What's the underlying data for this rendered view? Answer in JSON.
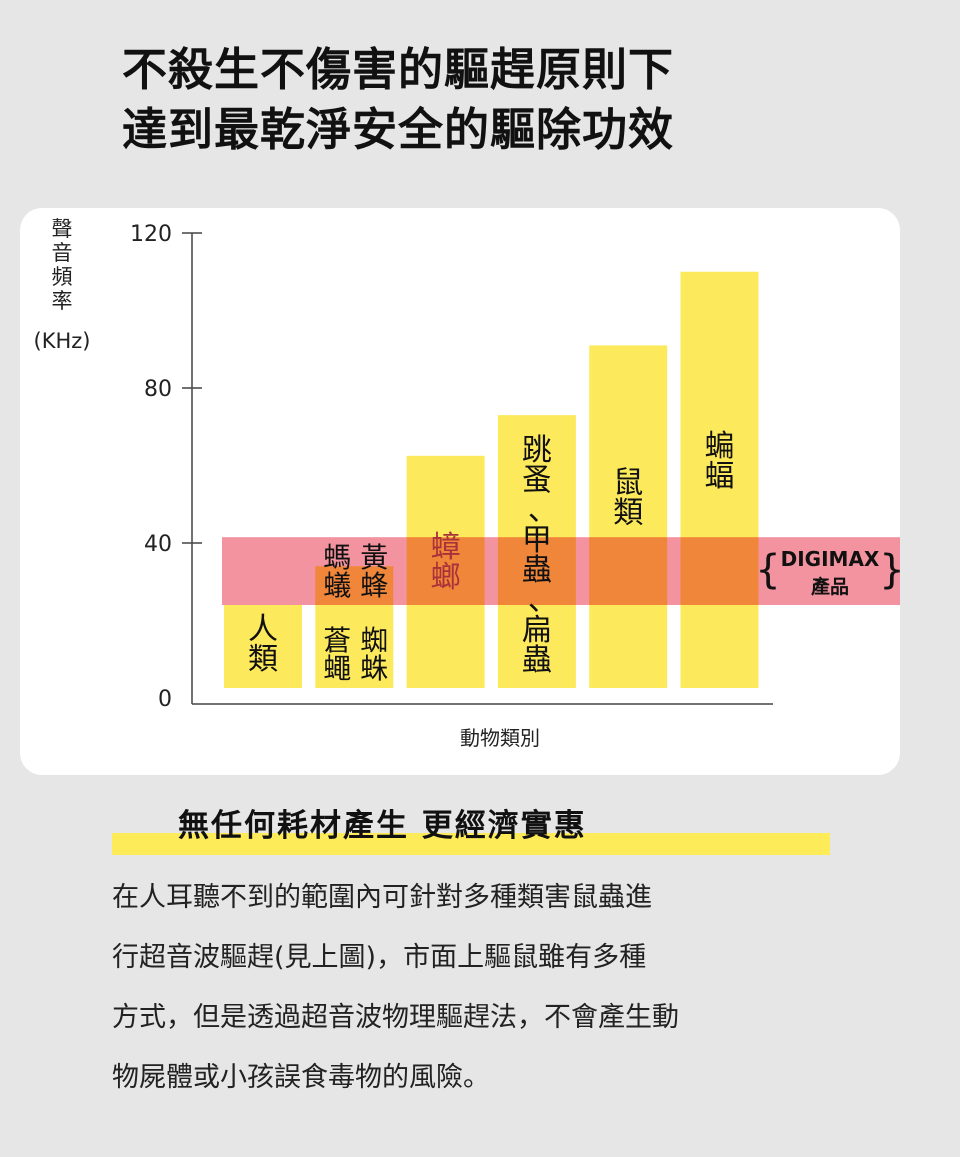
{
  "title_lines": [
    "不殺生不傷害的驅趕原則下",
    "達到最乾淨安全的驅除功效"
  ],
  "chart_data": {
    "type": "bar",
    "ylabel": "聲音頻率(KHz)",
    "ylabel_chars": [
      "聲",
      "音",
      "頻",
      "率"
    ],
    "ylabel_unit": "(KHz)",
    "xlabel": "動物類別",
    "ylim": [
      0,
      120
    ],
    "yticks": [
      0,
      40,
      80,
      120
    ],
    "grid": false,
    "bar_color": "#fde95c",
    "band_color": "#f2939f",
    "categories": [
      {
        "columns": [
          [
            "人類"
          ]
        ],
        "value": 24
      },
      {
        "columns": [
          [
            "螞蟻",
            "蒼蠅"
          ],
          [
            "黃蜂",
            "蜘蛛"
          ]
        ],
        "value": 34
      },
      {
        "columns": [
          [
            "蟑螂"
          ]
        ],
        "value": 62.5
      },
      {
        "columns": [
          [
            "跳蚤、甲蟲、扁蟲"
          ]
        ],
        "value": 73
      },
      {
        "columns": [
          [
            "鼠類"
          ]
        ],
        "value": 91
      },
      {
        "columns": [
          [
            "蝙蝠"
          ]
        ],
        "value": 110
      }
    ],
    "band": {
      "range": [
        24,
        41.5
      ],
      "label_line1": "DIGIMAX",
      "label_line2": "產品"
    }
  },
  "subtitle": "無任何耗材產生 更經濟實惠",
  "body_lines": [
    "在人耳聽不到的範圍內可針對多種類害鼠蟲進",
    "行超音波驅趕(見上圖)，市面上驅鼠雖有多種",
    "方式，但是透過超音波物理驅趕法，不會產生動",
    "物屍體或小孩誤食毒物的風險。"
  ]
}
